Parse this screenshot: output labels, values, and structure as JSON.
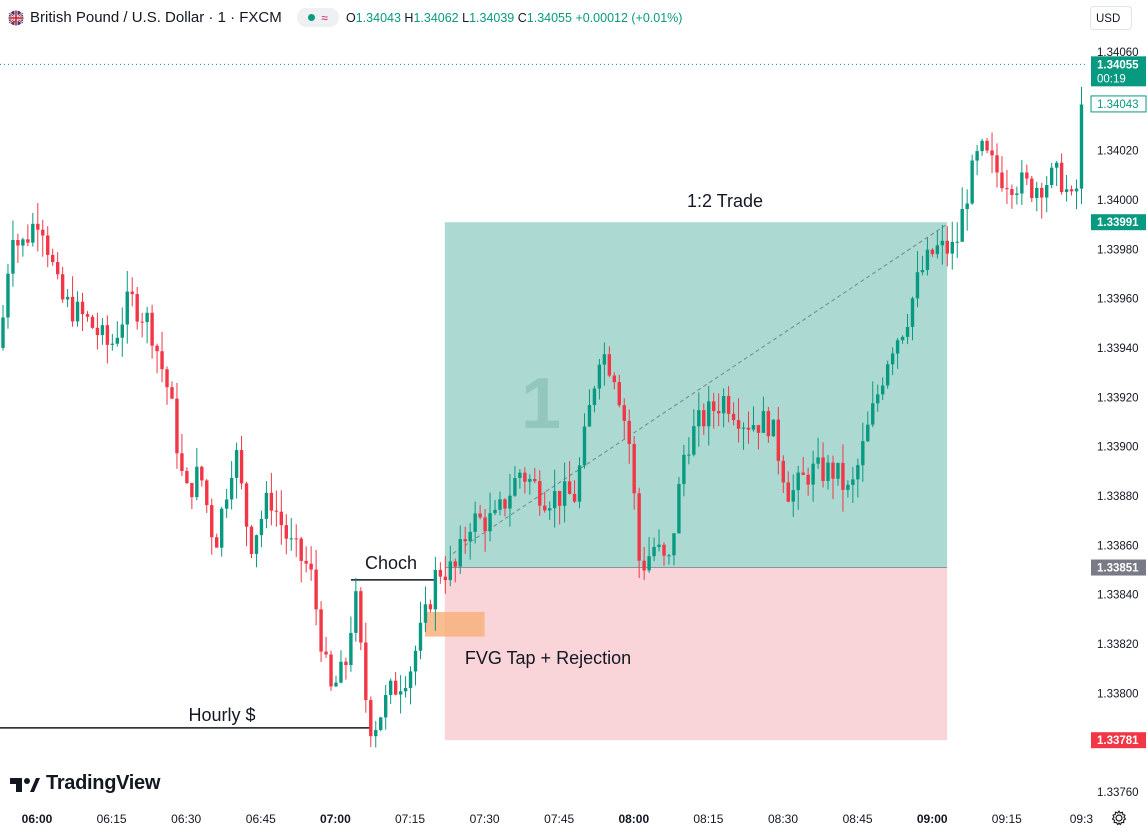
{
  "header": {
    "symbol": "British Pound / U.S. Dollar · 1 · FXCM",
    "status_symbol": "≈",
    "ohlc": {
      "o_label": "O",
      "o": "1.34043",
      "h_label": "H",
      "h": "1.34062",
      "l_label": "L",
      "l": "1.34039",
      "c_label": "C",
      "c": "1.34055",
      "change": "+0.00012 (+0.01%)"
    },
    "currency_button": "USD"
  },
  "brand": "TradingView",
  "colors": {
    "up": "#089981",
    "down": "#f23645",
    "profit_zone": "#acdad3",
    "loss_zone": "#f9d5da",
    "fvg": "#f7b27c"
  },
  "chart_data": {
    "type": "candlestick",
    "timeframe": "1 minute",
    "x_ticks": [
      "06:00",
      "06:15",
      "06:30",
      "06:45",
      "07:00",
      "07:15",
      "07:30",
      "07:45",
      "08:00",
      "08:15",
      "08:30",
      "08:45",
      "09:00",
      "09:15",
      "09:3"
    ],
    "bold_x_ticks": [
      "06:00",
      "07:00",
      "08:00",
      "09:00"
    ],
    "y_ticks": [
      "1.34060",
      "1.34020",
      "1.34000",
      "1.33980",
      "1.33960",
      "1.33940",
      "1.33920",
      "1.33900",
      "1.33880",
      "1.33860",
      "1.33840",
      "1.33820",
      "1.33800",
      "1.33760"
    ],
    "ylim": [
      1.3376,
      1.3406
    ],
    "price_labels": [
      {
        "value": "1.34055",
        "sub": "00:19",
        "color": "#089981"
      },
      {
        "value": "1.34043",
        "color": "#ffffff",
        "text_color": "#089981"
      },
      {
        "value": "1.33991",
        "color": "#089981"
      },
      {
        "value": "1.33851",
        "color": "#787b86"
      },
      {
        "value": "1.33781",
        "color": "#f23645"
      }
    ],
    "trade": {
      "ratio_label": "1:2 Trade",
      "entry": 1.33851,
      "target": 1.33991,
      "stop": 1.33781,
      "start_time": "07:22",
      "end_time": "09:03",
      "number_label": "1"
    },
    "annotations": [
      {
        "text": "Choch",
        "level": 1.33846
      },
      {
        "text": "FVG Tap + Rejection"
      },
      {
        "text": "Hourly $",
        "level": 1.33786
      }
    ],
    "fvg_zone": [
      1.33823,
      1.33833
    ]
  }
}
